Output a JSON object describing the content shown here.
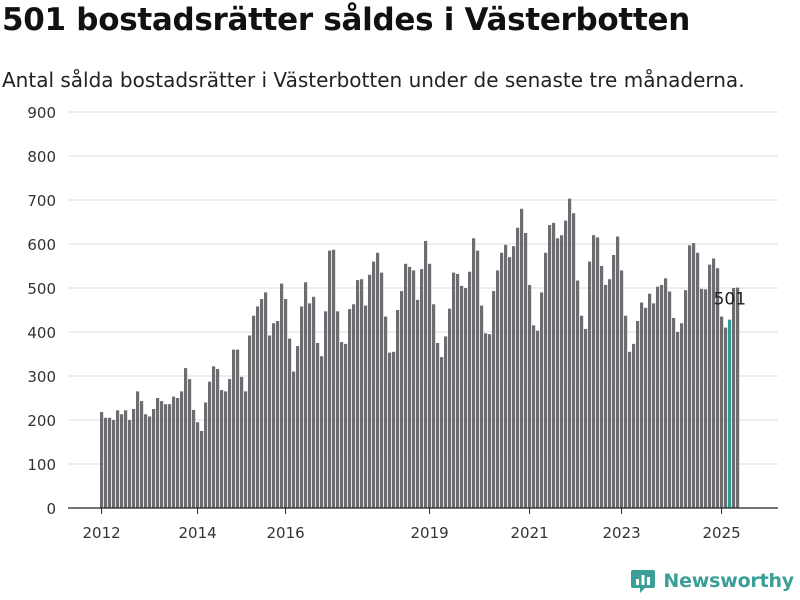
{
  "title": "501 bostadsrätter såldes i Västerbotten",
  "subtitle": "Antal sålda bostadsrätter i Västerbotten under de senaste tre månaderna.",
  "brand": {
    "name": "Newsworthy",
    "icon": "newsworthy-logo-icon"
  },
  "colors": {
    "bar": "#6d6c71",
    "highlight": "#2a9d8f",
    "grid": "#dddddd",
    "axis": "#222222",
    "brand": "#3c9e98"
  },
  "chart_data": {
    "type": "bar",
    "title": "501 bostadsrätter såldes i Västerbotten",
    "subtitle": "Antal sålda bostadsrätter i Västerbotten under de senaste tre månaderna.",
    "xlabel": "",
    "ylabel": "",
    "ylim": [
      0,
      900
    ],
    "yticks": [
      "0",
      "100",
      "200",
      "300",
      "400",
      "500",
      "600",
      "700",
      "800",
      "900"
    ],
    "xticks": [
      {
        "label": "2012",
        "at": 0
      },
      {
        "label": "2014",
        "at": 24
      },
      {
        "label": "2016",
        "at": 46
      },
      {
        "label": "2019",
        "at": 82
      },
      {
        "label": "2021",
        "at": 107
      },
      {
        "label": "2023",
        "at": 130
      },
      {
        "label": "2025",
        "at": 155
      }
    ],
    "grid": true,
    "highlight_index": 157,
    "annotation": {
      "text": "501",
      "index": 157
    },
    "values": [
      218,
      205,
      205,
      200,
      222,
      213,
      222,
      200,
      225,
      265,
      243,
      213,
      208,
      225,
      250,
      243,
      236,
      236,
      253,
      250,
      265,
      318,
      293,
      223,
      195,
      175,
      240,
      287,
      322,
      316,
      268,
      265,
      293,
      360,
      360,
      298,
      265,
      392,
      437,
      458,
      475,
      490,
      392,
      420,
      425,
      510,
      475,
      385,
      310,
      368,
      458,
      513,
      465,
      480,
      375,
      345,
      447,
      585,
      587,
      447,
      377,
      373,
      452,
      463,
      518,
      520,
      460,
      530,
      560,
      580,
      535,
      435,
      353,
      355,
      450,
      493,
      555,
      548,
      540,
      473,
      543,
      607,
      555,
      463,
      375,
      343,
      390,
      453,
      535,
      532,
      505,
      500,
      537,
      613,
      585,
      460,
      397,
      395,
      493,
      540,
      580,
      598,
      570,
      595,
      637,
      680,
      625,
      507,
      415,
      403,
      490,
      580,
      643,
      648,
      613,
      620,
      653,
      703,
      670,
      517,
      437,
      407,
      560,
      620,
      615,
      550,
      507,
      520,
      575,
      617,
      540,
      437,
      355,
      373,
      425,
      467,
      455,
      487,
      465,
      503,
      507,
      522,
      492,
      432,
      400,
      420,
      495,
      597,
      602,
      580,
      498,
      497,
      553,
      567,
      545,
      435,
      410,
      428,
      500,
      501
    ]
  }
}
